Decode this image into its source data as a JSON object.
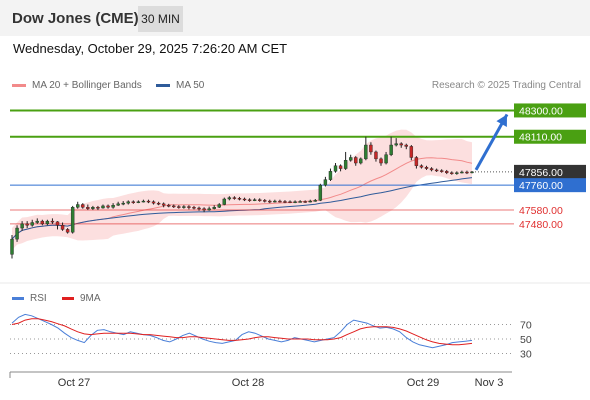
{
  "header": {
    "title": "Dow Jones (CME)",
    "timeframe": "30 MIN",
    "timestamp": "Wednesday, October 29, 2025 7:26:20 AM CET"
  },
  "legend": {
    "bollinger": {
      "label": "MA 20 + Bollinger Bands",
      "color": "#f28a8a"
    },
    "ma50": {
      "label": "MA 50",
      "color": "#2f5b9a"
    }
  },
  "copyright": "Research © 2025 Trading Central",
  "chart_data": [
    {
      "type": "candlestick",
      "y_range": [
        47060,
        48390
      ],
      "x_labels": [
        "Oct 27",
        "Oct 28",
        "Oct 29",
        "Nov 3"
      ],
      "levels": [
        {
          "value": "48300.00",
          "kind": "resistance",
          "color": "#4aa012"
        },
        {
          "value": "48110.00",
          "kind": "resistance",
          "color": "#4aa012"
        },
        {
          "value": "47856.00",
          "kind": "last",
          "color": "#333333"
        },
        {
          "value": "47760.00",
          "kind": "pivot",
          "color": "#2f6fd0"
        },
        {
          "value": "47580.00",
          "kind": "support",
          "color": "#e03030"
        },
        {
          "value": "47480.00",
          "kind": "support",
          "color": "#e03030"
        }
      ],
      "target_arrow": {
        "from": 47856,
        "to": 48300
      },
      "candles": [
        [
          47260,
          47370,
          47230,
          47400
        ],
        [
          47370,
          47450,
          47350,
          47470
        ],
        [
          47450,
          47480,
          47430,
          47500
        ],
        [
          47480,
          47470,
          47450,
          47500
        ],
        [
          47470,
          47490,
          47460,
          47510
        ],
        [
          47490,
          47500,
          47480,
          47520
        ],
        [
          47500,
          47480,
          47470,
          47510
        ],
        [
          47480,
          47500,
          47470,
          47510
        ],
        [
          47500,
          47495,
          47480,
          47520
        ],
        [
          47495,
          47470,
          47440,
          47500
        ],
        [
          47470,
          47440,
          47430,
          47490
        ],
        [
          47440,
          47420,
          47410,
          47450
        ],
        [
          47420,
          47600,
          47410,
          47610
        ],
        [
          47600,
          47620,
          47590,
          47640
        ],
        [
          47620,
          47600,
          47590,
          47630
        ],
        [
          47600,
          47590,
          47580,
          47620
        ],
        [
          47590,
          47600,
          47580,
          47610
        ],
        [
          47600,
          47595,
          47580,
          47610
        ],
        [
          47595,
          47610,
          47590,
          47620
        ],
        [
          47610,
          47600,
          47590,
          47620
        ],
        [
          47600,
          47615,
          47590,
          47630
        ],
        [
          47615,
          47625,
          47610,
          47640
        ],
        [
          47625,
          47630,
          47615,
          47645
        ],
        [
          47630,
          47640,
          47620,
          47650
        ],
        [
          47640,
          47635,
          47625,
          47650
        ],
        [
          47635,
          47640,
          47630,
          47650
        ],
        [
          47640,
          47645,
          47635,
          47655
        ],
        [
          47645,
          47640,
          47630,
          47655
        ],
        [
          47640,
          47630,
          47620,
          47650
        ],
        [
          47630,
          47625,
          47615,
          47640
        ],
        [
          47625,
          47615,
          47600,
          47635
        ],
        [
          47615,
          47610,
          47600,
          47625
        ],
        [
          47610,
          47605,
          47595,
          47620
        ],
        [
          47605,
          47600,
          47590,
          47615
        ],
        [
          47600,
          47605,
          47590,
          47615
        ],
        [
          47605,
          47600,
          47585,
          47615
        ],
        [
          47600,
          47595,
          47585,
          47610
        ],
        [
          47595,
          47590,
          47575,
          47605
        ],
        [
          47590,
          47580,
          47565,
          47600
        ],
        [
          47580,
          47590,
          47575,
          47605
        ],
        [
          47590,
          47600,
          47585,
          47615
        ],
        [
          47600,
          47620,
          47595,
          47630
        ],
        [
          47620,
          47660,
          47615,
          47670
        ],
        [
          47660,
          47670,
          47650,
          47680
        ],
        [
          47670,
          47665,
          47655,
          47680
        ],
        [
          47665,
          47660,
          47650,
          47675
        ],
        [
          47660,
          47655,
          47645,
          47670
        ],
        [
          47655,
          47650,
          47640,
          47665
        ],
        [
          47650,
          47655,
          47645,
          47665
        ],
        [
          47655,
          47650,
          47640,
          47665
        ],
        [
          47650,
          47645,
          47635,
          47660
        ],
        [
          47645,
          47640,
          47630,
          47655
        ],
        [
          47640,
          47645,
          47635,
          47655
        ],
        [
          47645,
          47642,
          47635,
          47655
        ],
        [
          47642,
          47640,
          47630,
          47652
        ],
        [
          47640,
          47638,
          47630,
          47650
        ],
        [
          47638,
          47640,
          47630,
          47650
        ],
        [
          47640,
          47642,
          47635,
          47652
        ],
        [
          47642,
          47640,
          47632,
          47650
        ],
        [
          47640,
          47645,
          47635,
          47655
        ],
        [
          47645,
          47650,
          47640,
          47660
        ],
        [
          47650,
          47760,
          47645,
          47770
        ],
        [
          47760,
          47800,
          47750,
          47820
        ],
        [
          47800,
          47860,
          47790,
          47880
        ],
        [
          47860,
          47900,
          47850,
          47920
        ],
        [
          47900,
          47880,
          47860,
          47910
        ],
        [
          47880,
          47940,
          47870,
          48000
        ],
        [
          47940,
          47960,
          47930,
          47980
        ],
        [
          47960,
          47920,
          47900,
          47970
        ],
        [
          47920,
          47950,
          47910,
          47960
        ],
        [
          47950,
          48050,
          47940,
          48110
        ],
        [
          48050,
          48000,
          47980,
          48070
        ],
        [
          48000,
          47950,
          47930,
          48010
        ],
        [
          47950,
          47920,
          47900,
          47960
        ],
        [
          47920,
          47980,
          47910,
          48000
        ],
        [
          47980,
          48050,
          47970,
          48110
        ],
        [
          48050,
          48060,
          48040,
          48100
        ],
        [
          48060,
          48050,
          48030,
          48070
        ],
        [
          48050,
          48040,
          48020,
          48060
        ],
        [
          48040,
          47960,
          47940,
          48050
        ],
        [
          47960,
          47900,
          47880,
          47970
        ],
        [
          47900,
          47890,
          47880,
          47910
        ],
        [
          47890,
          47880,
          47870,
          47900
        ],
        [
          47880,
          47870,
          47860,
          47890
        ],
        [
          47870,
          47865,
          47855,
          47880
        ],
        [
          47865,
          47860,
          47850,
          47875
        ],
        [
          47860,
          47850,
          47840,
          47870
        ],
        [
          47850,
          47845,
          47835,
          47860
        ],
        [
          47845,
          47850,
          47835,
          47860
        ],
        [
          47850,
          47855,
          47845,
          47865
        ],
        [
          47855,
          47850,
          47840,
          47865
        ],
        [
          47850,
          47856,
          47845,
          47862
        ]
      ]
    },
    {
      "type": "line",
      "x_labels": [
        "Oct 27",
        "Oct 28",
        "Oct 29",
        "Nov 3"
      ],
      "ylim": [
        10,
        90
      ],
      "yticks": [
        "70",
        "50",
        "30"
      ],
      "series": [
        {
          "name": "RSI",
          "color": "#4a7fd8",
          "values": [
            72,
            80,
            84,
            82,
            78,
            74,
            70,
            65,
            58,
            52,
            48,
            45,
            55,
            62,
            63,
            60,
            58,
            56,
            60,
            58,
            56,
            55,
            52,
            48,
            46,
            50,
            55,
            58,
            54,
            50,
            47,
            45,
            44,
            46,
            48,
            56,
            60,
            58,
            54,
            50,
            48,
            46,
            48,
            52,
            50,
            48,
            46,
            48,
            50,
            52,
            60,
            70,
            76,
            74,
            72,
            68,
            65,
            66,
            64,
            60,
            52,
            46,
            42,
            40,
            38,
            40,
            42,
            45,
            46,
            47,
            48
          ]
        },
        {
          "name": "9MA",
          "color": "#e02020",
          "values": [
            70,
            72,
            76,
            78,
            78,
            76,
            74,
            71,
            68,
            64,
            60,
            57,
            56,
            57,
            58,
            58,
            58,
            58,
            58,
            57,
            56,
            56,
            55,
            54,
            53,
            52,
            52,
            53,
            53,
            52,
            51,
            50,
            49,
            48,
            48,
            49,
            50,
            52,
            53,
            53,
            52,
            51,
            50,
            50,
            50,
            50,
            49,
            49,
            49,
            50,
            52,
            56,
            60,
            64,
            66,
            67,
            67,
            67,
            66,
            64,
            61,
            57,
            53,
            49,
            46,
            44,
            43,
            42,
            42,
            43,
            44
          ]
        }
      ]
    }
  ]
}
